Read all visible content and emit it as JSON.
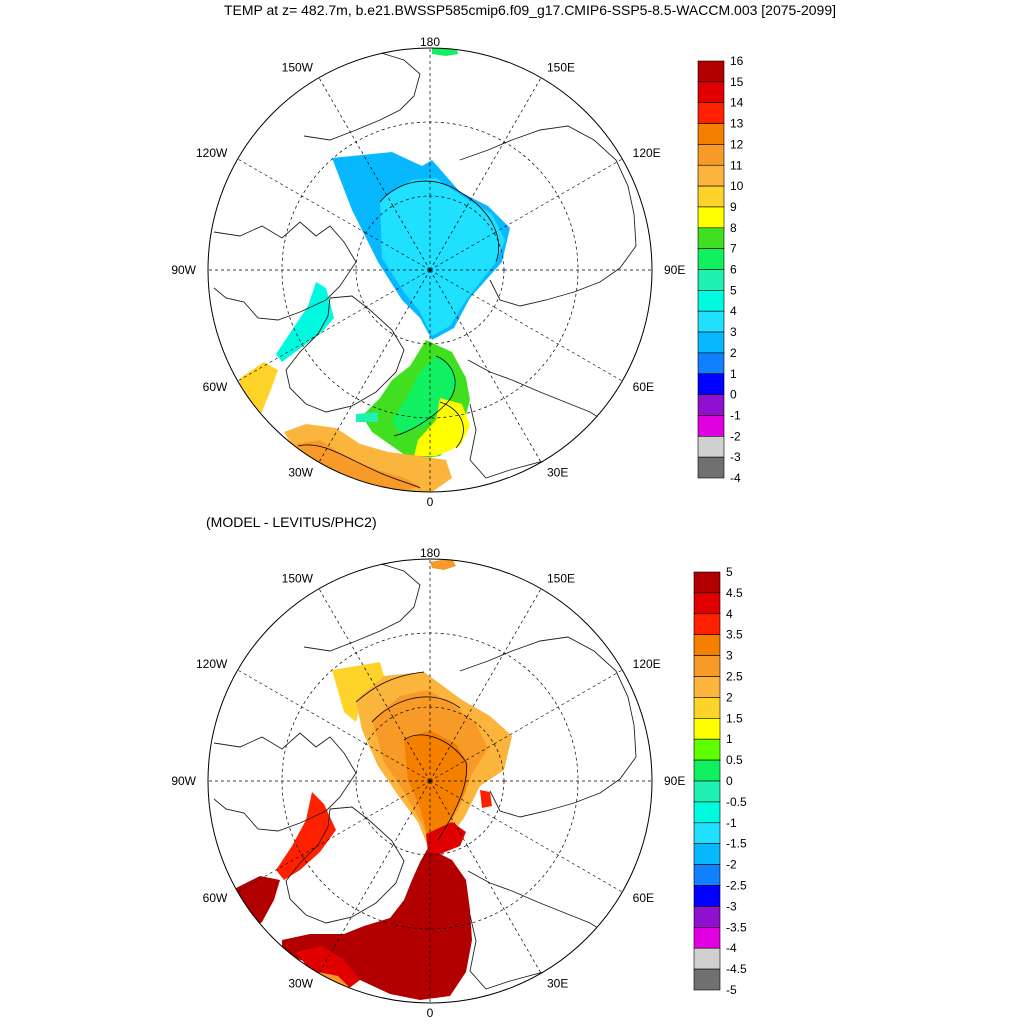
{
  "title": "TEMP at z= 482.7m, b.e21.BWSSP585cmip6.f09_g17.CMIP6-SSP5-8.5-WACCM.003 [2075-2099]",
  "subtitle": "(MODEL - LEVITUS/PHC2)",
  "lon_labels": [
    "180",
    "150E",
    "120E",
    "90E",
    "60E",
    "30E",
    "0",
    "30W",
    "60W",
    "90W",
    "120W",
    "150W"
  ],
  "top_colorbar": {
    "labels": [
      "16",
      "15",
      "14",
      "13",
      "12",
      "11",
      "10",
      "9",
      "8",
      "7",
      "6",
      "5",
      "4",
      "3",
      "2",
      "1",
      "0",
      "-1",
      "-2",
      "-3",
      "-4"
    ],
    "colors": [
      "#b20000",
      "#e00000",
      "#ff2000",
      "#f58000",
      "#f89a28",
      "#fbb43c",
      "#ffd42a",
      "#ffff00",
      "#40e020",
      "#10f060",
      "#20f0b0",
      "#00fae0",
      "#20e0ff",
      "#08b8ff",
      "#1080ff",
      "#0000ff",
      "#9010d0",
      "#e000e0",
      "#d0d0d0",
      "#707070"
    ]
  },
  "bottom_colorbar": {
    "labels": [
      "5",
      "4.5",
      "4",
      "3.5",
      "3",
      "2.5",
      "2",
      "1.5",
      "1",
      "0.5",
      "0",
      "-0.5",
      "-1",
      "-1.5",
      "-2",
      "-2.5",
      "-3",
      "-3.5",
      "-4",
      "-4.5",
      "-5"
    ],
    "colors": [
      "#b20000",
      "#e00000",
      "#ff2000",
      "#f58000",
      "#f89a28",
      "#fbb43c",
      "#ffd42a",
      "#ffff00",
      "#60ff00",
      "#10f060",
      "#20f0b0",
      "#00fae0",
      "#20e0ff",
      "#08b8ff",
      "#1080ff",
      "#0000ff",
      "#9010d0",
      "#e000e0",
      "#d0d0d0",
      "#707070"
    ]
  }
}
